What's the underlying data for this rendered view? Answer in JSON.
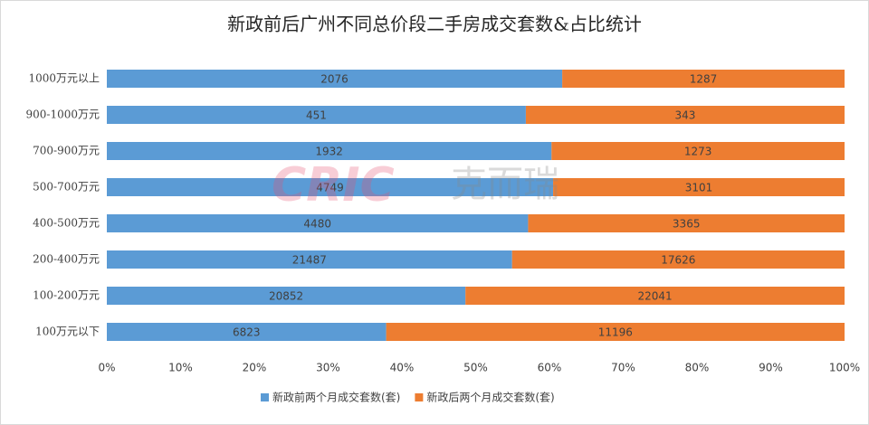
{
  "chart_data": {
    "type": "bar",
    "orientation": "horizontal",
    "stacking": "percent",
    "title": "新政前后广州不同总价段二手房成交套数&占比统计",
    "watermark": {
      "latin": "CRIC",
      "chinese": "克而瑞"
    },
    "categories": [
      "1000万元以上",
      "900-1000万元",
      "700-900万元",
      "500-700万元",
      "400-500万元",
      "200-400万元",
      "100-200万元",
      "100万元以下"
    ],
    "series": [
      {
        "name": "新政前两个月成交套数(套)",
        "color": "#5b9bd5",
        "values": [
          2076,
          451,
          1932,
          4749,
          4480,
          21487,
          20852,
          6823
        ]
      },
      {
        "name": "新政后两个月成交套数(套)",
        "color": "#ed7d31",
        "values": [
          1287,
          343,
          1273,
          3101,
          3365,
          17626,
          22041,
          11196
        ]
      }
    ],
    "xlim": [
      0,
      100
    ],
    "xticks": [
      {
        "value": 0,
        "label": "0%"
      },
      {
        "value": 10,
        "label": "10%"
      },
      {
        "value": 20,
        "label": "20%"
      },
      {
        "value": 30,
        "label": "30%"
      },
      {
        "value": 40,
        "label": "40%"
      },
      {
        "value": 50,
        "label": "50%"
      },
      {
        "value": 60,
        "label": "60%"
      },
      {
        "value": 70,
        "label": "70%"
      },
      {
        "value": 80,
        "label": "80%"
      },
      {
        "value": 90,
        "label": "90%"
      },
      {
        "value": 100,
        "label": "100%"
      }
    ],
    "legend": "bottom"
  }
}
